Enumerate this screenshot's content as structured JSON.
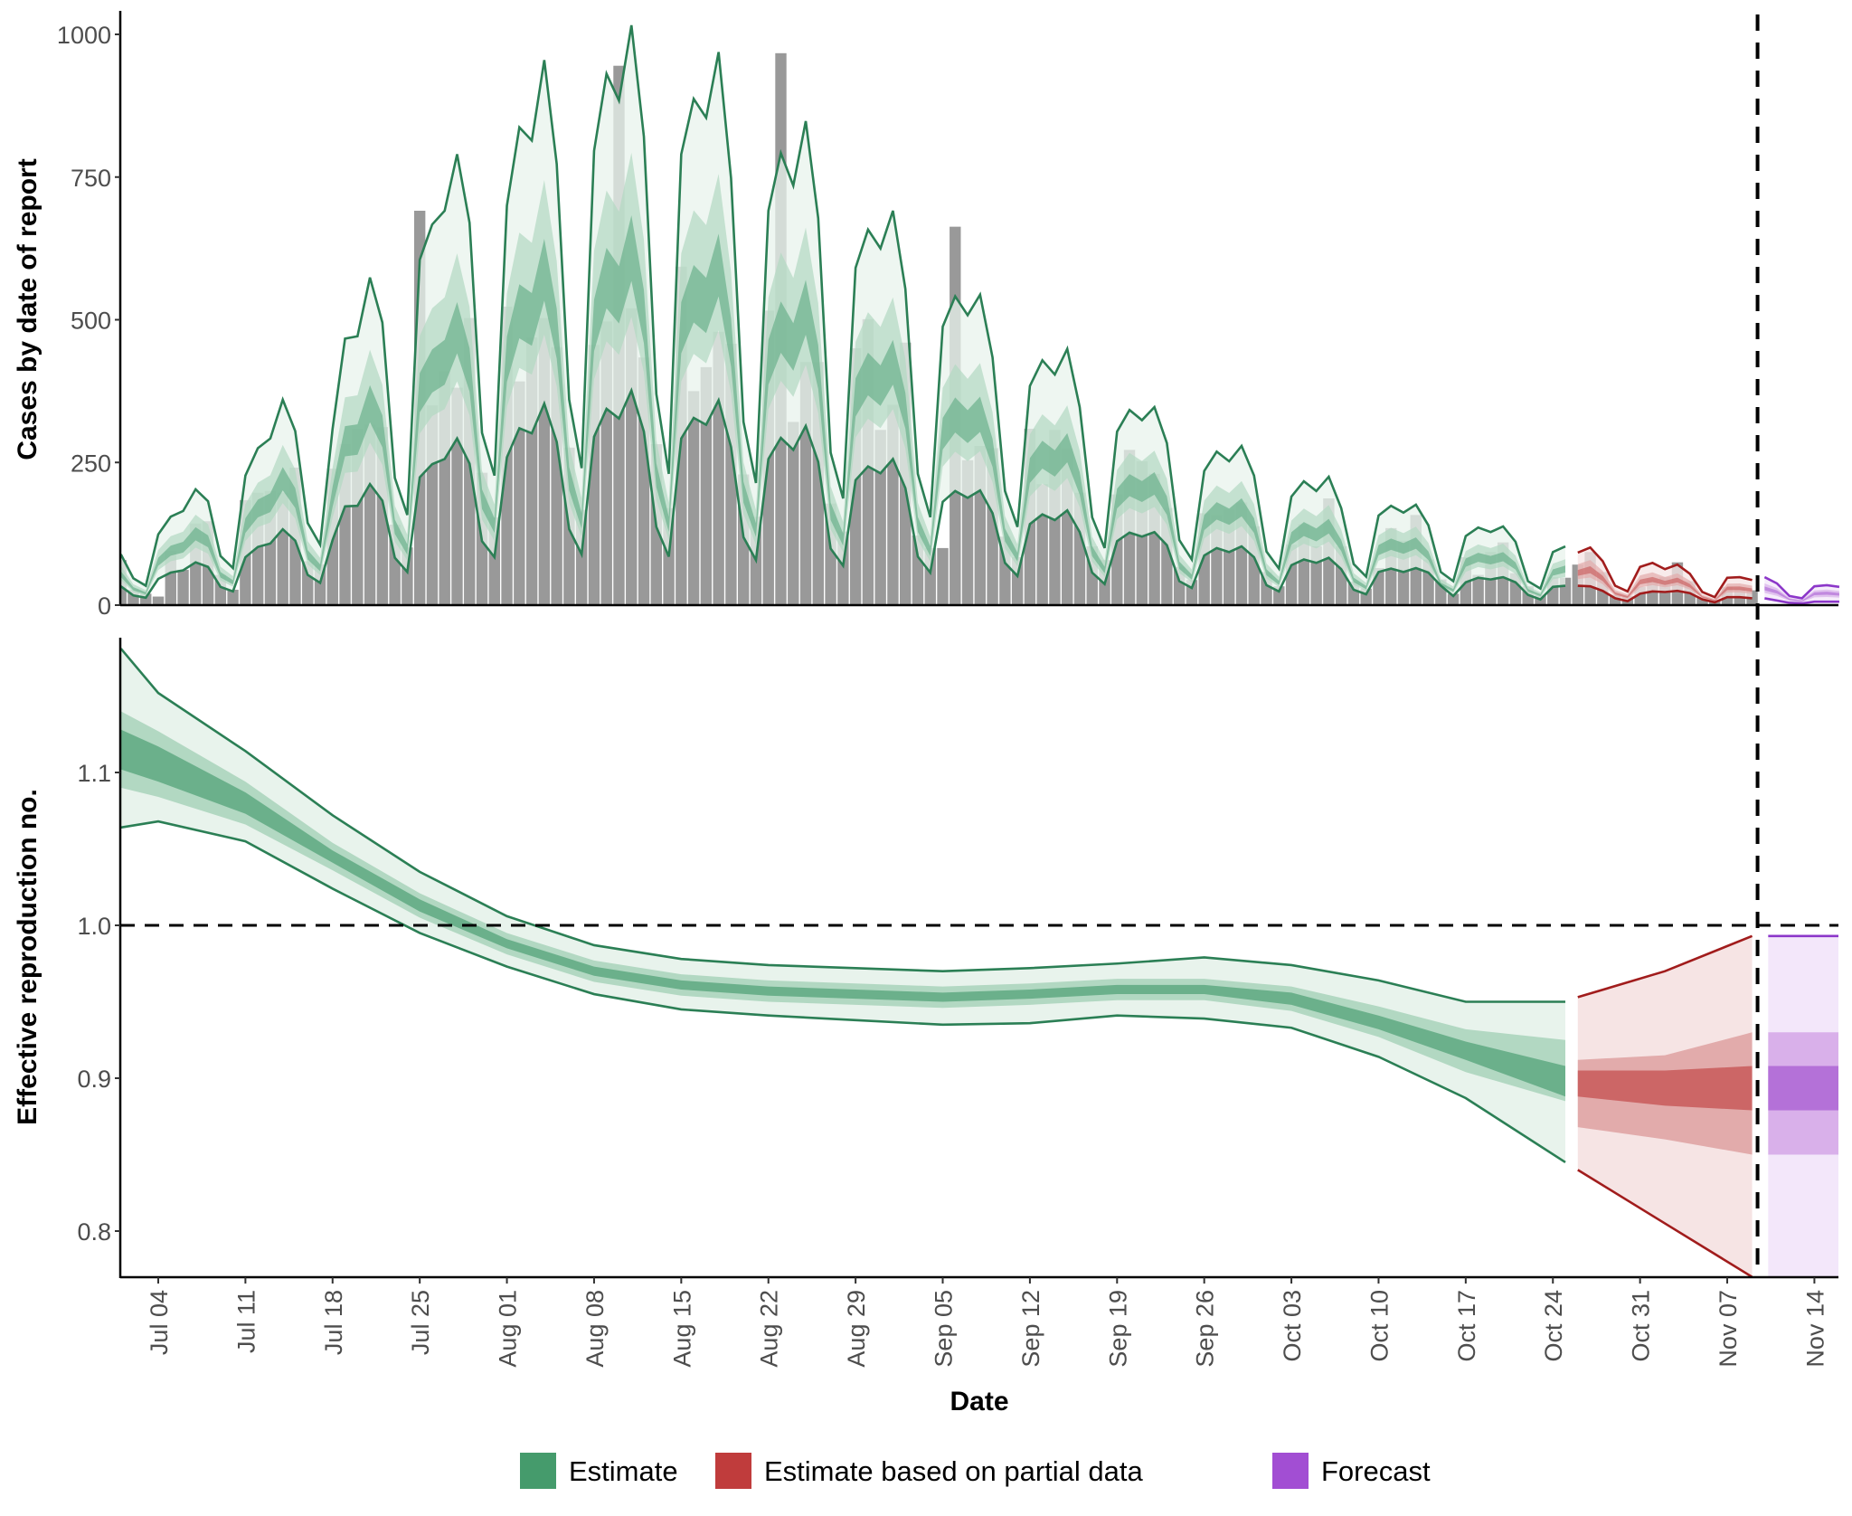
{
  "chart_data": [
    {
      "type": "bar",
      "panel": "cases",
      "ylabel": "Cases by date of report",
      "ylim": [
        0,
        1035
      ],
      "yticks": [
        "0",
        "250",
        "500",
        "750",
        "1000"
      ],
      "grid": false,
      "first_date": "Jul 01",
      "bars": [
        79,
        27,
        20,
        15,
        95,
        62,
        143,
        147,
        53,
        27,
        184,
        197,
        200,
        197,
        241,
        77,
        71,
        239,
        282,
        309,
        316,
        312,
        141,
        101,
        691,
        350,
        410,
        381,
        503,
        232,
        154,
        523,
        392,
        469,
        503,
        452,
        276,
        167,
        456,
        497,
        945,
        520,
        434,
        282,
        170,
        593,
        375,
        417,
        479,
        458,
        229,
        155,
        516,
        967,
        321,
        426,
        426,
        178,
        129,
        450,
        501,
        307,
        351,
        460,
        122,
        100,
        100,
        663,
        254,
        279,
        275,
        120,
        84,
        309,
        212,
        307,
        274,
        197,
        103,
        79,
        194,
        272,
        252,
        230,
        170,
        67,
        44,
        161,
        158,
        167,
        180,
        138,
        58,
        33,
        106,
        142,
        103,
        187,
        103,
        41,
        29,
        65,
        135,
        113,
        158,
        80,
        45,
        20,
        84,
        53,
        93,
        110,
        56,
        33,
        18,
        49,
        48,
        71,
        93,
        58,
        18,
        16,
        32,
        45,
        49,
        75,
        42,
        13,
        8,
        32,
        29,
        26
      ],
      "estimate_upper90": [
        89,
        47,
        34,
        124,
        155,
        165,
        203,
        182,
        86,
        65,
        227,
        275,
        292,
        360,
        305,
        144,
        106,
        309,
        467,
        471,
        574,
        495,
        223,
        158,
        605,
        667,
        691,
        790,
        670,
        302,
        227,
        700,
        837,
        814,
        955,
        773,
        360,
        240,
        796,
        931,
        884,
        1016,
        821,
        370,
        230,
        790,
        887,
        854,
        969,
        748,
        321,
        214,
        691,
        792,
        735,
        848,
        678,
        267,
        187,
        591,
        658,
        625,
        691,
        554,
        230,
        154,
        488,
        541,
        508,
        544,
        434,
        200,
        137,
        384,
        429,
        404,
        449,
        347,
        154,
        100,
        304,
        342,
        324,
        347,
        284,
        114,
        80,
        235,
        269,
        252,
        279,
        227,
        94,
        64,
        190,
        217,
        200,
        225,
        170,
        72,
        50,
        157,
        174,
        162,
        176,
        140,
        58,
        42,
        121,
        136,
        128,
        138,
        111,
        42,
        29,
        93,
        103,
        92,
        101,
        77,
        34,
        24,
        67,
        74,
        63,
        71,
        55,
        23,
        14,
        48,
        49,
        44,
        49,
        38,
        16,
        12,
        33,
        35,
        32
      ],
      "estimate_median": [
        53,
        28,
        20,
        74,
        93,
        99,
        122,
        109,
        52,
        39,
        136,
        165,
        175,
        216,
        183,
        86,
        64,
        185,
        280,
        283,
        344,
        297,
        134,
        95,
        363,
        400,
        415,
        474,
        402,
        181,
        136,
        420,
        502,
        488,
        573,
        464,
        216,
        144,
        478,
        559,
        530,
        610,
        493,
        222,
        138,
        474,
        532,
        512,
        581,
        449,
        193,
        128,
        415,
        475,
        441,
        509,
        407,
        160,
        112,
        355,
        395,
        375,
        415,
        332,
        138,
        92,
        293,
        325,
        305,
        326,
        260,
        120,
        82,
        230,
        257,
        242,
        269,
        208,
        92,
        60,
        182,
        205,
        194,
        208,
        170,
        68,
        48,
        141,
        161,
        151,
        167,
        136,
        56,
        38,
        114,
        130,
        120,
        135,
        102,
        43,
        30,
        94,
        104,
        97,
        106,
        84,
        35,
        25,
        73,
        82,
        77,
        83,
        67,
        25,
        17,
        56,
        62,
        55,
        61,
        46,
        20,
        14,
        40,
        44,
        38,
        43,
        33,
        14,
        8,
        29,
        29,
        26,
        29,
        23,
        10,
        7,
        20,
        21,
        19
      ],
      "estimate_lower90": [
        33,
        17,
        13,
        46,
        57,
        61,
        75,
        67,
        32,
        24,
        84,
        102,
        108,
        133,
        113,
        53,
        39,
        114,
        173,
        174,
        212,
        183,
        83,
        58,
        224,
        247,
        256,
        292,
        248,
        112,
        84,
        259,
        310,
        301,
        353,
        286,
        133,
        89,
        295,
        344,
        327,
        376,
        304,
        137,
        85,
        292,
        328,
        316,
        359,
        277,
        119,
        79,
        256,
        293,
        272,
        314,
        251,
        99,
        69,
        219,
        243,
        231,
        256,
        205,
        85,
        57,
        181,
        200,
        188,
        201,
        161,
        74,
        51,
        142,
        159,
        149,
        166,
        128,
        57,
        37,
        112,
        127,
        120,
        128,
        105,
        42,
        30,
        87,
        100,
        93,
        103,
        84,
        35,
        24,
        70,
        80,
        74,
        83,
        63,
        27,
        19,
        58,
        64,
        58,
        65,
        57,
        34,
        16,
        40,
        48,
        45,
        49,
        40,
        18,
        10,
        32,
        34,
        34,
        33,
        25,
        12,
        7,
        20,
        24,
        23,
        25,
        21,
        10,
        5,
        14,
        14,
        12,
        12,
        8,
        4,
        3,
        6,
        6,
        6
      ]
    },
    {
      "type": "area",
      "panel": "rt",
      "ylabel": "Effective reproduction no.",
      "xlabel": "Date",
      "ylim": [
        0.77,
        1.188
      ],
      "yticks": [
        "0.8",
        "0.9",
        "1.0",
        "1.1"
      ],
      "reference_line": 1.0,
      "grid": false,
      "xticks": [
        "Jul 04",
        "Jul 11",
        "Jul 18",
        "Jul 25",
        "Aug 01",
        "Aug 08",
        "Aug 15",
        "Aug 22",
        "Aug 29",
        "Sep 05",
        "Sep 12",
        "Sep 19",
        "Sep 26",
        "Oct 03",
        "Oct 10",
        "Oct 17",
        "Oct 24",
        "Oct 31",
        "Nov 07",
        "Nov 14"
      ],
      "series": [
        {
          "name": "Estimate",
          "dates": [
            "Jul 01",
            "Jul 04",
            "Jul 11",
            "Jul 18",
            "Jul 25",
            "Aug 01",
            "Aug 08",
            "Aug 15",
            "Aug 22",
            "Aug 29",
            "Sep 05",
            "Sep 12",
            "Sep 19",
            "Sep 26",
            "Oct 03",
            "Oct 10",
            "Oct 17",
            "Oct 25"
          ],
          "median": [
            1.115,
            1.105,
            1.08,
            1.045,
            1.013,
            0.988,
            0.97,
            0.961,
            0.957,
            0.955,
            0.953,
            0.955,
            0.958,
            0.958,
            0.952,
            0.937,
            0.918,
            0.898
          ],
          "upper90": [
            1.181,
            1.152,
            1.114,
            1.072,
            1.035,
            1.006,
            0.987,
            0.978,
            0.974,
            0.972,
            0.97,
            0.972,
            0.975,
            0.979,
            0.974,
            0.964,
            0.95,
            0.95
          ],
          "lower90": [
            1.064,
            1.068,
            1.055,
            1.024,
            0.995,
            0.973,
            0.955,
            0.945,
            0.941,
            0.938,
            0.935,
            0.936,
            0.941,
            0.939,
            0.933,
            0.914,
            0.887,
            0.845
          ],
          "upper50": [
            1.14,
            1.127,
            1.094,
            1.054,
            1.021,
            0.995,
            0.977,
            0.968,
            0.964,
            0.962,
            0.96,
            0.962,
            0.965,
            0.965,
            0.96,
            0.947,
            0.932,
            0.925
          ],
          "lower50": [
            1.09,
            1.084,
            1.066,
            1.036,
            1.005,
            0.981,
            0.963,
            0.954,
            0.95,
            0.948,
            0.946,
            0.948,
            0.951,
            0.951,
            0.944,
            0.927,
            0.904,
            0.885
          ],
          "upper20": [
            1.128,
            1.117,
            1.087,
            1.049,
            1.017,
            0.991,
            0.973,
            0.964,
            0.96,
            0.958,
            0.956,
            0.958,
            0.961,
            0.961,
            0.956,
            0.941,
            0.924,
            0.908
          ],
          "lower20": [
            1.102,
            1.094,
            1.073,
            1.041,
            1.009,
            0.985,
            0.967,
            0.958,
            0.954,
            0.952,
            0.95,
            0.952,
            0.955,
            0.955,
            0.948,
            0.932,
            0.912,
            0.888
          ]
        },
        {
          "name": "Estimate based on partial data",
          "dates": [
            "Oct 26",
            "Nov 02",
            "Nov 09"
          ],
          "median": [
            0.896,
            0.894,
            0.893
          ],
          "upper90": [
            0.953,
            0.97,
            0.993
          ],
          "lower90": [
            0.84,
            0.805,
            0.77
          ],
          "upper50": [
            0.912,
            0.915,
            0.93
          ],
          "lower50": [
            0.868,
            0.86,
            0.85
          ],
          "upper20": [
            0.905,
            0.905,
            0.908
          ],
          "lower20": [
            0.888,
            0.882,
            0.879
          ]
        },
        {
          "name": "Forecast",
          "dates": [
            "Nov 10",
            "Nov 16"
          ],
          "median": [
            0.893,
            0.893
          ],
          "upper90": [
            0.993,
            0.993
          ],
          "lower90": [
            0.77,
            0.77
          ],
          "upper50": [
            0.93,
            0.93
          ],
          "lower50": [
            0.85,
            0.85
          ],
          "upper20": [
            0.908,
            0.908
          ],
          "lower20": [
            0.879,
            0.879
          ]
        }
      ],
      "forecast_start_marker": "Nov 09"
    }
  ],
  "legend": {
    "placement": "bottom",
    "items": [
      {
        "label": "Estimate",
        "color": "#459b6c"
      },
      {
        "label": "Estimate based on partial data",
        "color": "#c03c3c"
      },
      {
        "label": "Forecast",
        "color": "#a24ed3"
      }
    ]
  },
  "colors": {
    "bars": "#999999",
    "estimate": {
      "line": "#2b7f55",
      "b90": "#e8f3ec",
      "b50": "#b2d8c2",
      "b20": "#6bb08b"
    },
    "partial": {
      "line": "#a11c1c",
      "b90": "#f6e4e4",
      "b50": "#e2abab",
      "b20": "#cc6666"
    },
    "forecast": {
      "line": "#8c37c9",
      "b90": "#f3e7fa",
      "b50": "#d9b0ea",
      "b20": "#b471d8"
    }
  }
}
